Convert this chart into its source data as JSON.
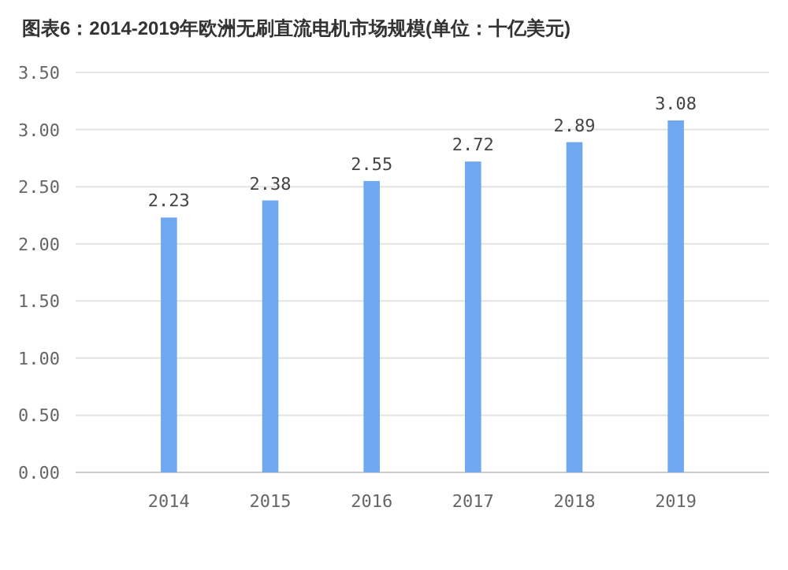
{
  "chart_data": {
    "type": "bar",
    "title": "图表6：2014-2019年欧洲无刷直流电机市场规模(单位：十亿美元)",
    "categories": [
      "2014",
      "2015",
      "2016",
      "2017",
      "2018",
      "2019"
    ],
    "values": [
      2.23,
      2.38,
      2.55,
      2.72,
      2.89,
      3.08
    ],
    "color": "#6fa8ef",
    "ylim": [
      0,
      3.5
    ],
    "yticks": [
      {
        "value": 0,
        "label": "0.00"
      },
      {
        "value": 0.5,
        "label": "0.50"
      },
      {
        "value": 1,
        "label": "1.00"
      },
      {
        "value": 1.5,
        "label": "1.50"
      },
      {
        "value": 2,
        "label": "2.00"
      },
      {
        "value": 2.5,
        "label": "2.50"
      },
      {
        "value": 3,
        "label": "3.00"
      },
      {
        "value": 3.5,
        "label": "3.50"
      }
    ],
    "grid": "y",
    "data_labels": true
  }
}
